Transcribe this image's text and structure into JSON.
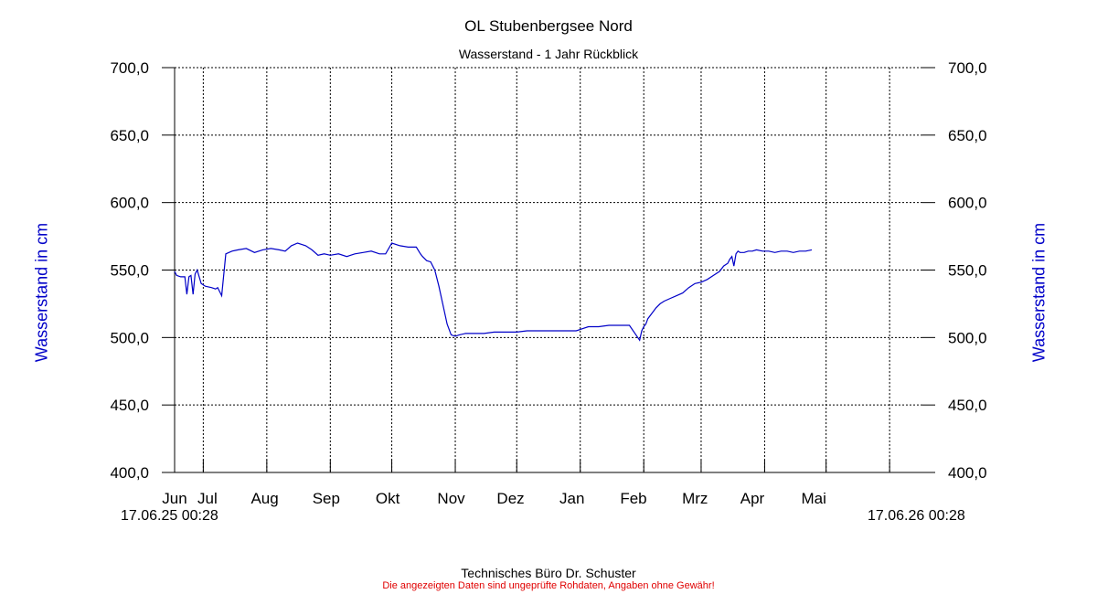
{
  "chart_data": {
    "type": "line",
    "title": "OL Stubenbergsee Nord",
    "subtitle": "Wasserstand - 1 Jahr Rückblick",
    "ylabel": "Wasserstand in cm",
    "ylabel_right": "Wasserstand in cm",
    "ylim": [
      400,
      700
    ],
    "yticks": [
      "400,0",
      "450,0",
      "500,0",
      "550,0",
      "600,0",
      "650,0",
      "700,0"
    ],
    "ytick_values": [
      400,
      450,
      500,
      550,
      600,
      650,
      700
    ],
    "x_start_label": "17.06.25 00:28",
    "x_end_label": "17.06.26 00:28",
    "xlim": [
      "2025-06-17",
      "2026-06-17"
    ],
    "month_labels": [
      {
        "label": "Jun",
        "date": "2025-06-17"
      },
      {
        "label": "Jul",
        "date": "2025-07-03"
      },
      {
        "label": "Aug",
        "date": "2025-07-31"
      },
      {
        "label": "Sep",
        "date": "2025-08-30"
      },
      {
        "label": "Okt",
        "date": "2025-09-29"
      },
      {
        "label": "Nov",
        "date": "2025-10-30"
      },
      {
        "label": "Dez",
        "date": "2025-11-28"
      },
      {
        "label": "Jan",
        "date": "2025-12-28"
      },
      {
        "label": "Feb",
        "date": "2026-01-27"
      },
      {
        "label": "Mrz",
        "date": "2026-02-26"
      },
      {
        "label": "Apr",
        "date": "2026-03-26"
      },
      {
        "label": "Mai",
        "date": "2026-04-25"
      }
    ],
    "month_ticks": [
      "2025-07-01",
      "2025-08-01",
      "2025-09-01",
      "2025-10-01",
      "2025-11-01",
      "2025-12-01",
      "2026-01-01",
      "2026-02-01",
      "2026-03-01",
      "2026-04-01",
      "2026-05-01",
      "2026-06-01"
    ],
    "grid": true,
    "line_color": "#0000c8",
    "series": [
      {
        "x": [
          "2025-06-17",
          "2025-06-18",
          "2025-06-20",
          "2025-06-22",
          "2025-06-23",
          "2025-06-24",
          "2025-06-25",
          "2025-06-26",
          "2025-06-27",
          "2025-06-28",
          "2025-06-29",
          "2025-06-30",
          "2025-07-02",
          "2025-07-05",
          "2025-07-07",
          "2025-07-08",
          "2025-07-09",
          "2025-07-10",
          "2025-07-12",
          "2025-07-15",
          "2025-07-18",
          "2025-07-22",
          "2025-07-26",
          "2025-07-30",
          "2025-08-03",
          "2025-08-07",
          "2025-08-10",
          "2025-08-13",
          "2025-08-16",
          "2025-08-18",
          "2025-08-20",
          "2025-08-23",
          "2025-08-26",
          "2025-08-29",
          "2025-09-01",
          "2025-09-05",
          "2025-09-09",
          "2025-09-13",
          "2025-09-17",
          "2025-09-21",
          "2025-09-25",
          "2025-09-28",
          "2025-10-01",
          "2025-10-05",
          "2025-10-09",
          "2025-10-13",
          "2025-10-15",
          "2025-10-16",
          "2025-10-18",
          "2025-10-20",
          "2025-10-22",
          "2025-10-24",
          "2025-10-26",
          "2025-10-28",
          "2025-10-30",
          "2025-11-01",
          "2025-11-03",
          "2025-11-06",
          "2025-11-10",
          "2025-11-15",
          "2025-11-20",
          "2025-11-25",
          "2025-12-01",
          "2025-12-06",
          "2025-12-12",
          "2025-12-18",
          "2025-12-24",
          "2025-12-30",
          "2026-01-05",
          "2026-01-10",
          "2026-01-15",
          "2026-01-20",
          "2026-01-25",
          "2026-01-30",
          "2026-01-31",
          "2026-02-01",
          "2026-02-02",
          "2026-02-03",
          "2026-02-05",
          "2026-02-07",
          "2026-02-09",
          "2026-02-11",
          "2026-02-14",
          "2026-02-17",
          "2026-02-20",
          "2026-02-23",
          "2026-02-26",
          "2026-03-01",
          "2026-03-04",
          "2026-03-07",
          "2026-03-10",
          "2026-03-12",
          "2026-03-14",
          "2026-03-15",
          "2026-03-16",
          "2026-03-17",
          "2026-03-18",
          "2026-03-19",
          "2026-03-20",
          "2026-03-22",
          "2026-03-24",
          "2026-03-26",
          "2026-03-28",
          "2026-03-31",
          "2026-04-03",
          "2026-04-06",
          "2026-04-09",
          "2026-04-12",
          "2026-04-15",
          "2026-04-18",
          "2026-04-21",
          "2026-04-24"
        ],
        "values": [
          549,
          546,
          545,
          545,
          532,
          545,
          546,
          532,
          547,
          550,
          545,
          540,
          538,
          537,
          536,
          537,
          534,
          531,
          562,
          564,
          565,
          566,
          563,
          565,
          566,
          565,
          564,
          568,
          570,
          569,
          568,
          565,
          561,
          562,
          561,
          562,
          560,
          562,
          563,
          564,
          562,
          562,
          570,
          568,
          567,
          567,
          562,
          560,
          557,
          556,
          550,
          538,
          524,
          510,
          502,
          501,
          502,
          503,
          503,
          503,
          504,
          504,
          504,
          505,
          505,
          505,
          505,
          505,
          508,
          508,
          509,
          509,
          509,
          498,
          505,
          508,
          510,
          514,
          518,
          522,
          525,
          527,
          529,
          531,
          533,
          537,
          540,
          541,
          543,
          546,
          549,
          553,
          555,
          558,
          560,
          553,
          562,
          564,
          563,
          563,
          564,
          564,
          565,
          564,
          564,
          563,
          564,
          564,
          563,
          564,
          564,
          565
        ]
      }
    ]
  },
  "footer": "Technisches Büro Dr. Schuster",
  "disclaimer": "Die angezeigten Daten sind ungeprüfte Rohdaten, Angaben ohne Gewähr!"
}
